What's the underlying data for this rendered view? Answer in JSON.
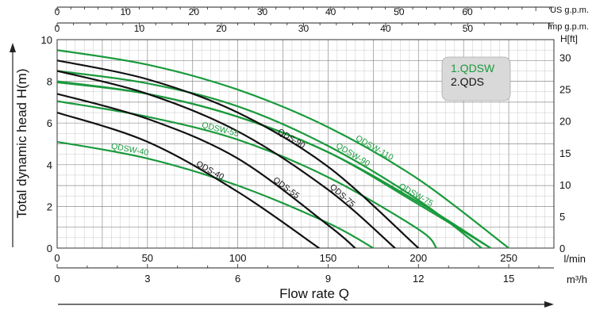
{
  "chart_data": {
    "type": "line",
    "ylabel": "Total dynamic head H(m)",
    "ylabel_ft": "H[ft]",
    "xlabel": "Flow rate Q",
    "xlim_lmin": [
      0,
      275
    ],
    "ylim_m": [
      0,
      10
    ],
    "grid": true,
    "top_axes": [
      {
        "unit": "US g.p.m.",
        "ticks": [
          0,
          10,
          20,
          30,
          40,
          50,
          60
        ]
      },
      {
        "unit": "Imp g.p.m.",
        "ticks": [
          0,
          10,
          20,
          30,
          40,
          50
        ]
      }
    ],
    "bottom_axes": [
      {
        "unit": "l/min",
        "ticks": [
          0,
          50,
          100,
          150,
          200,
          250
        ]
      },
      {
        "unit": "m³/h",
        "ticks": [
          0,
          3,
          6,
          9,
          12,
          15
        ]
      }
    ],
    "y_ticks_m": [
      0,
      2,
      4,
      6,
      8,
      10
    ],
    "y_ticks_ft": [
      0,
      5,
      10,
      15,
      20,
      25,
      30
    ],
    "legend": {
      "position": "top-right",
      "items": [
        {
          "label": "1.QDSW",
          "color": "#1a9a3c"
        },
        {
          "label": "2.QDS",
          "color": "#111111"
        }
      ]
    },
    "colors": {
      "qdsw": "#1a9a3c",
      "qds": "#111111"
    },
    "series": [
      {
        "name": "QDSW-40",
        "family": "QDSW",
        "x": [
          0,
          50,
          100,
          150,
          175
        ],
        "y": [
          5.1,
          4.3,
          3.0,
          1.2,
          0
        ]
      },
      {
        "name": "QDSW-55",
        "family": "QDSW",
        "x": [
          0,
          50,
          100,
          150,
          200,
          210
        ],
        "y": [
          7.05,
          6.3,
          5.2,
          3.4,
          0.9,
          0
        ]
      },
      {
        "name": "QDSW-75",
        "family": "QDSW",
        "x": [
          0,
          50,
          100,
          150,
          200,
          240
        ],
        "y": [
          7.95,
          7.4,
          6.3,
          4.6,
          2.2,
          0
        ]
      },
      {
        "name": "QDSW-90",
        "family": "QDSW",
        "x": [
          0,
          50,
          100,
          150,
          200,
          235
        ],
        "y": [
          8.5,
          7.9,
          6.8,
          4.9,
          2.3,
          0
        ]
      },
      {
        "name": "QDSW-110",
        "family": "QDSW",
        "x": [
          0,
          50,
          100,
          150,
          200,
          250
        ],
        "y": [
          9.5,
          8.8,
          7.6,
          5.8,
          3.3,
          0
        ]
      },
      {
        "name": "",
        "family": "QDSW",
        "x": [
          0,
          50,
          100,
          150,
          200,
          240
        ],
        "y": [
          8.0,
          7.4,
          6.3,
          4.6,
          2.1,
          0
        ]
      },
      {
        "name": "QDS-40",
        "family": "QDS",
        "x": [
          0,
          50,
          100,
          145
        ],
        "y": [
          6.5,
          5.1,
          2.7,
          0
        ]
      },
      {
        "name": "QDS-55",
        "family": "QDS",
        "x": [
          0,
          50,
          100,
          150,
          165
        ],
        "y": [
          7.4,
          6.2,
          4.3,
          1.1,
          0
        ]
      },
      {
        "name": "QDS-75",
        "family": "QDS",
        "x": [
          0,
          50,
          100,
          150,
          187
        ],
        "y": [
          8.5,
          7.4,
          5.6,
          2.8,
          0
        ]
      },
      {
        "name": "QDS-90",
        "family": "QDS",
        "x": [
          0,
          50,
          100,
          150,
          200
        ],
        "y": [
          9.0,
          8.1,
          6.5,
          3.9,
          0
        ]
      }
    ],
    "curve_labels": [
      {
        "text": "QDSW-40",
        "family": "QDSW"
      },
      {
        "text": "QDSW-55",
        "family": "QDSW"
      },
      {
        "text": "QDSW-75",
        "family": "QDSW"
      },
      {
        "text": "QDSW-90",
        "family": "QDSW"
      },
      {
        "text": "QDSW-110",
        "family": "QDSW"
      },
      {
        "text": "QDS-40",
        "family": "QDS"
      },
      {
        "text": "QDS-55",
        "family": "QDS"
      },
      {
        "text": "QDS-75",
        "family": "QDS"
      },
      {
        "text": "QDS-90",
        "family": "QDS"
      }
    ]
  }
}
